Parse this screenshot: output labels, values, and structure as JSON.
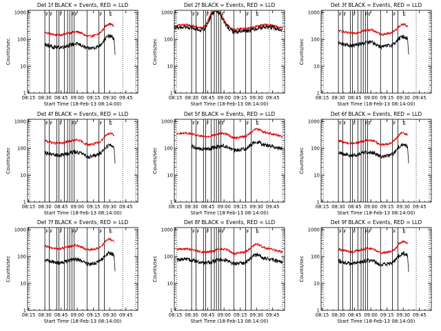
{
  "chart_data": {
    "type": "line",
    "layout": "3x3 grid",
    "x_tick_labels": [
      "08:15",
      "08:30",
      "08:45",
      "09:00",
      "09:15",
      "09:30",
      "09:45"
    ],
    "y_tick_labels": [
      "1",
      "10",
      "100",
      "1000"
    ],
    "yscale": "log",
    "ylim": [
      1,
      1200
    ],
    "xlim_minutes_after_0814": [
      0,
      102
    ],
    "xlabel": "Start Time (18-Feb-13 08:14:00)",
    "ylabel": "Counts/sec",
    "markers": {
      "solid_lines_min": [
        16,
        20,
        27,
        29,
        34,
        37,
        39,
        41,
        43,
        55,
        66,
        71
      ],
      "dotted_lines_min": [
        2,
        88,
        100
      ],
      "flag_letters": [
        "F",
        "F",
        "F",
        "F",
        "F",
        "F",
        "E"
      ],
      "flag_positions_min": [
        16,
        20,
        29,
        40,
        43,
        66,
        75
      ]
    },
    "panels": [
      {
        "title": "Det 1f BLACK = Events, RED = LLD",
        "events_level": 60,
        "lld_level": 170,
        "events_start_min": 16,
        "lld_start_min": 16,
        "end_min": 80,
        "bump": 2.2,
        "bump2": 1.0,
        "hump_center": 0
      },
      {
        "title": "Det 2f BLACK = Events, RED = LLD",
        "events_level": 250,
        "lld_level": 300,
        "events_start_min": 0,
        "lld_start_min": 0,
        "end_min": 100,
        "bump": 1.0,
        "bump2": 1.0,
        "hump_center": 38
      },
      {
        "title": "Det 3f BLACK = Events, RED = LLD",
        "events_level": 70,
        "lld_level": 200,
        "events_start_min": 16,
        "lld_start_min": 16,
        "end_min": 80,
        "bump": 1.8,
        "bump2": 1.0,
        "hump_center": 0
      },
      {
        "title": "Det 4f BLACK = Events, RED = LLD",
        "events_level": 65,
        "lld_level": 180,
        "events_start_min": 16,
        "lld_start_min": 16,
        "end_min": 80,
        "bump": 2.0,
        "bump2": 1.0,
        "hump_center": 0
      },
      {
        "title": "Det 5f BLACK = Events, RED = LLD",
        "events_level": 110,
        "lld_level": 320,
        "events_start_min": 16,
        "lld_start_min": 2,
        "end_min": 100,
        "bump": 1.6,
        "bump2": 1.0,
        "hump_center": 0
      },
      {
        "title": "Det 6f BLACK = Events, RED = LLD",
        "events_level": 65,
        "lld_level": 180,
        "events_start_min": 16,
        "lld_start_min": 16,
        "end_min": 80,
        "bump": 2.1,
        "bump2": 1.0,
        "hump_center": 0
      },
      {
        "title": "Det 7f BLACK = Events, RED = LLD",
        "events_level": 70,
        "lld_level": 230,
        "events_start_min": 16,
        "lld_start_min": 16,
        "end_min": 80,
        "bump": 1.9,
        "bump2": 1.0,
        "hump_center": 0
      },
      {
        "title": "Det 8f BLACK = Events, RED = LLD",
        "events_level": 70,
        "lld_level": 170,
        "events_start_min": 2,
        "lld_start_min": 2,
        "end_min": 100,
        "bump": 1.7,
        "bump2": 1.0,
        "hump_center": 0
      },
      {
        "title": "Det 9f BLACK = Events, RED = LLD",
        "events_level": 65,
        "lld_level": 180,
        "events_start_min": 16,
        "lld_start_min": 16,
        "end_min": 80,
        "bump": 2.0,
        "bump2": 1.0,
        "hump_center": 0
      }
    ],
    "colors": {
      "events": "#000000",
      "lld": "#dd0000",
      "axes": "#000000",
      "background": "#ffffff"
    }
  }
}
